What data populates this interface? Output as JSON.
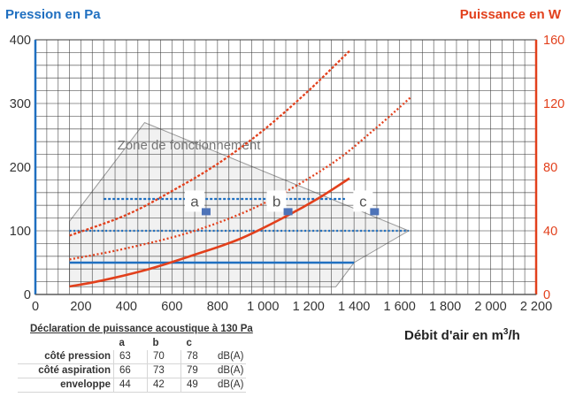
{
  "chart_data": {
    "type": "line",
    "title": "",
    "xlabel": "Débit d'air en m",
    "xlabel_sup": "3",
    "xlabel_suffix": "/h",
    "ylabel_left": "Pression en Pa",
    "ylabel_right": "Puissance en W",
    "xlim": [
      0,
      2200
    ],
    "ylim_left": [
      0,
      400
    ],
    "ylim_right": [
      0,
      160
    ],
    "x_ticks": [
      "0",
      "200",
      "400",
      "600",
      "800",
      "1 000",
      "1 200",
      "1 400",
      "1 600",
      "1 800",
      "2 000",
      "2 200"
    ],
    "y_left_ticks": [
      "0",
      "100",
      "200",
      "300",
      "400"
    ],
    "y_right_ticks": [
      "0",
      "40",
      "80",
      "120",
      "160"
    ],
    "grid": true,
    "colors": {
      "pressure": "#1f6fc0",
      "power": "#e2401c",
      "zone_fill": "#eeeeee",
      "zone_edge": "#9a9a9a",
      "marker": "#4e73b8"
    },
    "zone": {
      "label": "Zone de fonctionnement",
      "polygon": [
        [
          150,
          115
        ],
        [
          480,
          270
        ],
        [
          1640,
          100
        ],
        [
          1400,
          50
        ],
        [
          1320,
          12
        ],
        [
          150,
          12
        ]
      ]
    },
    "pressure_series": [
      {
        "style": "solid",
        "x": [
          150,
          1400
        ],
        "y": [
          50,
          50
        ]
      },
      {
        "style": "dotted",
        "x": [
          150,
          1640
        ],
        "y": [
          100,
          100
        ]
      },
      {
        "style": "dashed",
        "x": [
          300,
          1360
        ],
        "y": [
          150,
          150
        ]
      }
    ],
    "power_series": [
      {
        "style": "solid",
        "x": [
          150,
          300,
          500,
          700,
          900,
          1100,
          1250,
          1380
        ],
        "y": [
          5,
          9,
          16,
          25,
          35,
          49,
          61,
          73
        ]
      },
      {
        "style": "dotted",
        "x": [
          150,
          400,
          700,
          1000,
          1300,
          1500,
          1650
        ],
        "y": [
          22,
          29,
          40,
          57,
          82,
          105,
          124
        ]
      },
      {
        "style": "dashed",
        "x": [
          150,
          400,
          600,
          800,
          1000,
          1200,
          1380
        ],
        "y": [
          37,
          50,
          65,
          82,
          103,
          128,
          153
        ]
      }
    ],
    "points": [
      {
        "label": "a",
        "x": 750,
        "y": 130
      },
      {
        "label": "b",
        "x": 1110,
        "y": 130
      },
      {
        "label": "c",
        "x": 1490,
        "y": 130
      }
    ]
  },
  "acoustic": {
    "title": "Déclaration de puissance acoustique à 130 Pa",
    "columns": [
      "a",
      "b",
      "c"
    ],
    "rows": [
      {
        "label": "côté pression",
        "values": [
          "63",
          "70",
          "78"
        ],
        "unit": "dB(A)"
      },
      {
        "label": "côté aspiration",
        "values": [
          "66",
          "73",
          "79"
        ],
        "unit": "dB(A)"
      },
      {
        "label": "enveloppe",
        "values": [
          "44",
          "42",
          "49"
        ],
        "unit": "dB(A)"
      }
    ]
  }
}
